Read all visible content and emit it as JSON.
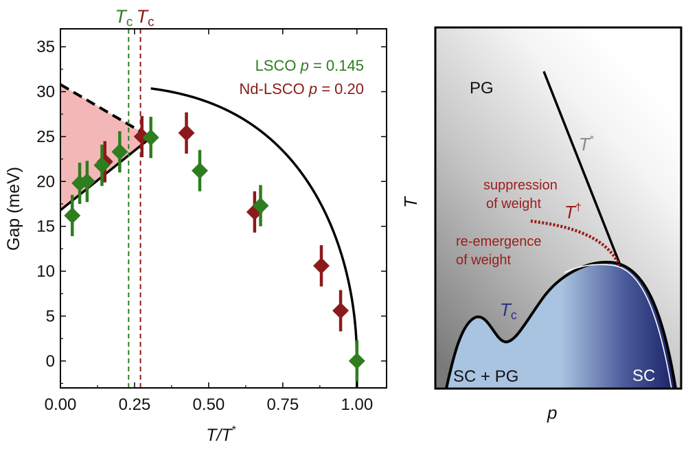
{
  "colors": {
    "lsco": "#2e7d1f",
    "ndlsco": "#8b1a1a",
    "fill": "#f4b7b7",
    "sc_light": "#a9c4e0",
    "sc_dark": "#1a2266",
    "tc_text": "#2b2f8a",
    "tdagger": "#9b1c1c",
    "tstar_text": "#8a8a8a"
  },
  "chart_data": [
    {
      "type": "scatter",
      "xlabel": {
        "main": "T/T",
        "sup": "*"
      },
      "ylabel": "Gap (meV)",
      "xlim": [
        0,
        1.1
      ],
      "ylim": [
        -3,
        37
      ],
      "xticks": [
        "0.00",
        "0.25",
        "0.50",
        "0.75",
        "1.00"
      ],
      "yticks": [
        "0",
        "5",
        "10",
        "15",
        "20",
        "25",
        "30",
        "35"
      ],
      "tc_markers": [
        {
          "label": "T",
          "sub": "c",
          "series": "lsco",
          "x": 0.23
        },
        {
          "label": "T",
          "sub": "c",
          "series": "ndlsco",
          "x": 0.27
        }
      ],
      "legend": [
        {
          "name": "LSCO",
          "p_label": "p",
          "value": " = 0.145",
          "series": "lsco"
        },
        {
          "name": "Nd-LSCO",
          "p_label": "p",
          "value": " = 0.20",
          "series": "ndlsco"
        }
      ],
      "series": [
        {
          "name": "LSCO p = 0.145",
          "key": "lsco",
          "points": [
            {
              "x": 0.04,
              "y": 16.2,
              "err": 2.3
            },
            {
              "x": 0.065,
              "y": 19.8,
              "err": 2.3
            },
            {
              "x": 0.09,
              "y": 20.0,
              "err": 2.3
            },
            {
              "x": 0.14,
              "y": 21.8,
              "err": 2.3
            },
            {
              "x": 0.2,
              "y": 23.3,
              "err": 2.3
            },
            {
              "x": 0.305,
              "y": 24.9,
              "err": 2.3
            },
            {
              "x": 0.47,
              "y": 21.2,
              "err": 2.3
            },
            {
              "x": 0.675,
              "y": 17.3,
              "err": 2.3
            },
            {
              "x": 1.0,
              "y": 0.0,
              "err": 2.3
            }
          ]
        },
        {
          "name": "Nd-LSCO p = 0.20",
          "key": "ndlsco",
          "points": [
            {
              "x": 0.15,
              "y": 22.2,
              "err": 2.3
            },
            {
              "x": 0.275,
              "y": 25.0,
              "err": 2.3
            },
            {
              "x": 0.425,
              "y": 25.4,
              "err": 2.3
            },
            {
              "x": 0.655,
              "y": 16.6,
              "err": 2.3
            },
            {
              "x": 0.88,
              "y": 10.6,
              "err": 2.3
            },
            {
              "x": 0.945,
              "y": 5.6,
              "err": 2.3
            }
          ]
        }
      ],
      "fit_curve": {
        "form": "BCS-like",
        "amplitude": 30.8,
        "extends_to": 1.0
      },
      "lower_line": {
        "x": [
          0.0,
          0.305
        ],
        "y": [
          16.8,
          24.9
        ]
      },
      "dashed_extrapolation": {
        "x": [
          0.0,
          0.305
        ],
        "y": [
          30.8,
          24.9
        ]
      }
    },
    {
      "type": "diagram",
      "xlabel": "p",
      "ylabel": "T",
      "labels": {
        "pg": "PG",
        "tstar": {
          "main": "T",
          "sup": "*"
        },
        "tdagger": {
          "main": "T",
          "sup": "†"
        },
        "suppression": [
          "suppression",
          "of weight"
        ],
        "reemergence": [
          "re-emergence",
          "of weight"
        ],
        "tc": {
          "main": "T",
          "sub": "c"
        },
        "sc_pg": "SC + PG",
        "sc": "SC"
      }
    }
  ]
}
